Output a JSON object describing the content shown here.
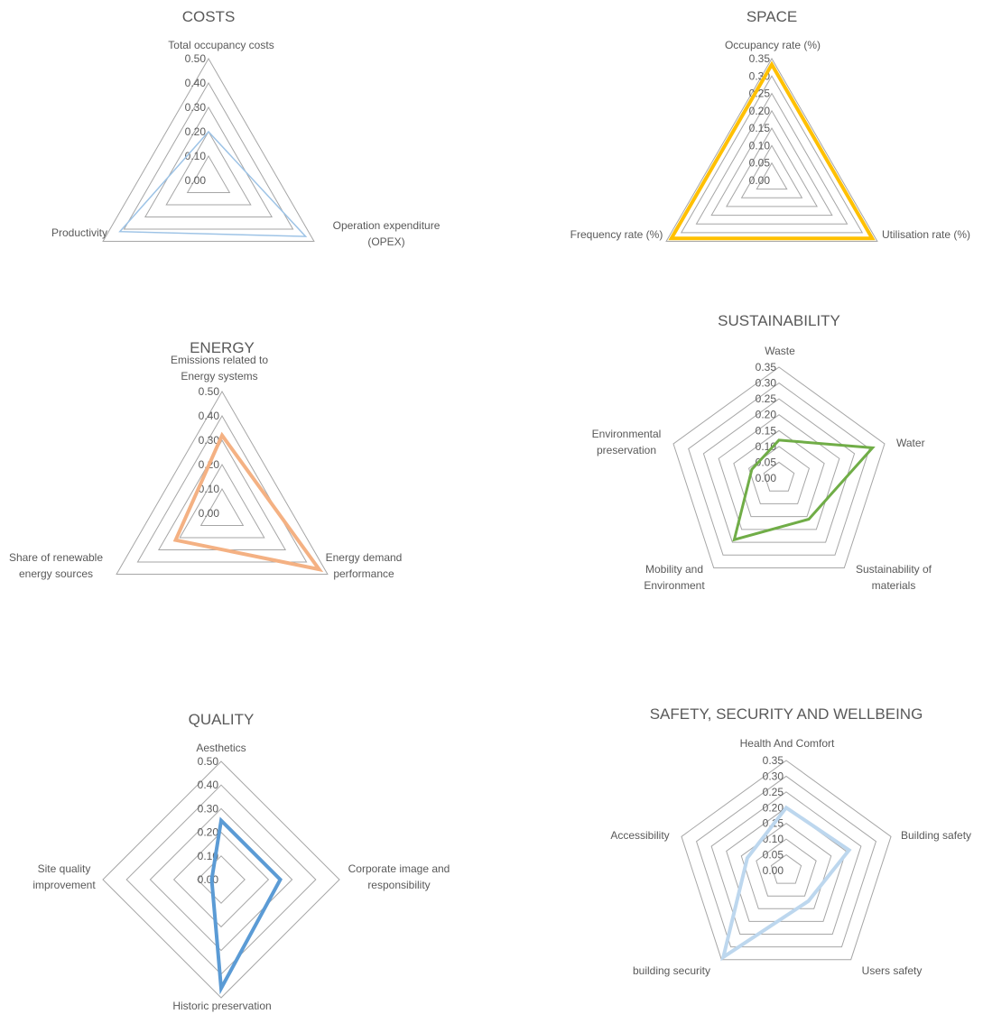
{
  "chart_data": [
    {
      "type": "radar",
      "title": "COSTS",
      "categories": [
        "Total occupancy costs",
        "Operation expenditure\n(OPEX)",
        "Productivity"
      ],
      "ticks": [
        "0.00",
        "0.10",
        "0.20",
        "0.30",
        "0.40",
        "0.50"
      ],
      "rlim": [
        0,
        0.5
      ],
      "grid": true,
      "series": [
        {
          "values": [
            0.2,
            0.46,
            0.42
          ],
          "color": "#9dc3e6",
          "stroke": 1.5
        }
      ]
    },
    {
      "type": "radar",
      "title": "SPACE",
      "categories": [
        "Occupancy rate (%)",
        "Utilisation rate (%)",
        "Frequency rate (%)"
      ],
      "ticks": [
        "0.00",
        "0.05",
        "0.10",
        "0.15",
        "0.20",
        "0.25",
        "0.30",
        "0.35"
      ],
      "rlim": [
        0,
        0.35
      ],
      "grid": true,
      "series": [
        {
          "values": [
            0.333,
            0.333,
            0.333
          ],
          "color": "#ffc000",
          "stroke": 4
        }
      ]
    },
    {
      "type": "radar",
      "title": "ENERGY",
      "categories": [
        "Emissions related to\nEnergy systems",
        "Energy demand\nperformance",
        "Share of renewable\nenergy sources"
      ],
      "ticks": [
        "0.00",
        "0.10",
        "0.20",
        "0.30",
        "0.40",
        "0.50"
      ],
      "rlim": [
        0,
        0.5
      ],
      "grid": true,
      "series": [
        {
          "values": [
            0.32,
            0.46,
            0.22
          ],
          "color": "#f4b183",
          "stroke": 4
        }
      ]
    },
    {
      "type": "radar",
      "title": "SUSTAINABILITY",
      "categories": [
        "Waste",
        "Water",
        "Sustainability of\nmaterials",
        "Mobility and\nEnvironment",
        "Environmental\npreservation"
      ],
      "ticks": [
        "0.00",
        "0.05",
        "0.10",
        "0.15",
        "0.20",
        "0.25",
        "0.30",
        "0.35"
      ],
      "rlim": [
        0,
        0.35
      ],
      "grid": true,
      "series": [
        {
          "values": [
            0.12,
            0.31,
            0.16,
            0.24,
            0.09
          ],
          "color": "#70ad47",
          "stroke": 3
        }
      ]
    },
    {
      "type": "radar",
      "title": "QUALITY",
      "categories": [
        "Aesthetics",
        "Corporate image and\nresponsibility",
        "Historic preservation",
        "Site quality\nimprovement"
      ],
      "ticks": [
        "0.00",
        "0.10",
        "0.20",
        "0.30",
        "0.40",
        "0.50"
      ],
      "rlim": [
        0,
        0.5
      ],
      "grid": true,
      "series": [
        {
          "values": [
            0.25,
            0.25,
            0.46,
            0.04
          ],
          "color": "#5b9bd5",
          "stroke": 4
        }
      ]
    },
    {
      "type": "radar",
      "title": "SAFETY, SECURITY AND WELLBEING",
      "categories": [
        "Health And Comfort",
        "Building safety",
        "Users safety",
        "building security",
        "Accessibility"
      ],
      "ticks": [
        "0.00",
        "0.05",
        "0.10",
        "0.15",
        "0.20",
        "0.25",
        "0.30",
        "0.35"
      ],
      "rlim": [
        0,
        0.35
      ],
      "grid": true,
      "series": [
        {
          "values": [
            0.2,
            0.21,
            0.12,
            0.34,
            0.13
          ],
          "color": "#bdd7ee",
          "stroke": 4
        }
      ]
    }
  ]
}
